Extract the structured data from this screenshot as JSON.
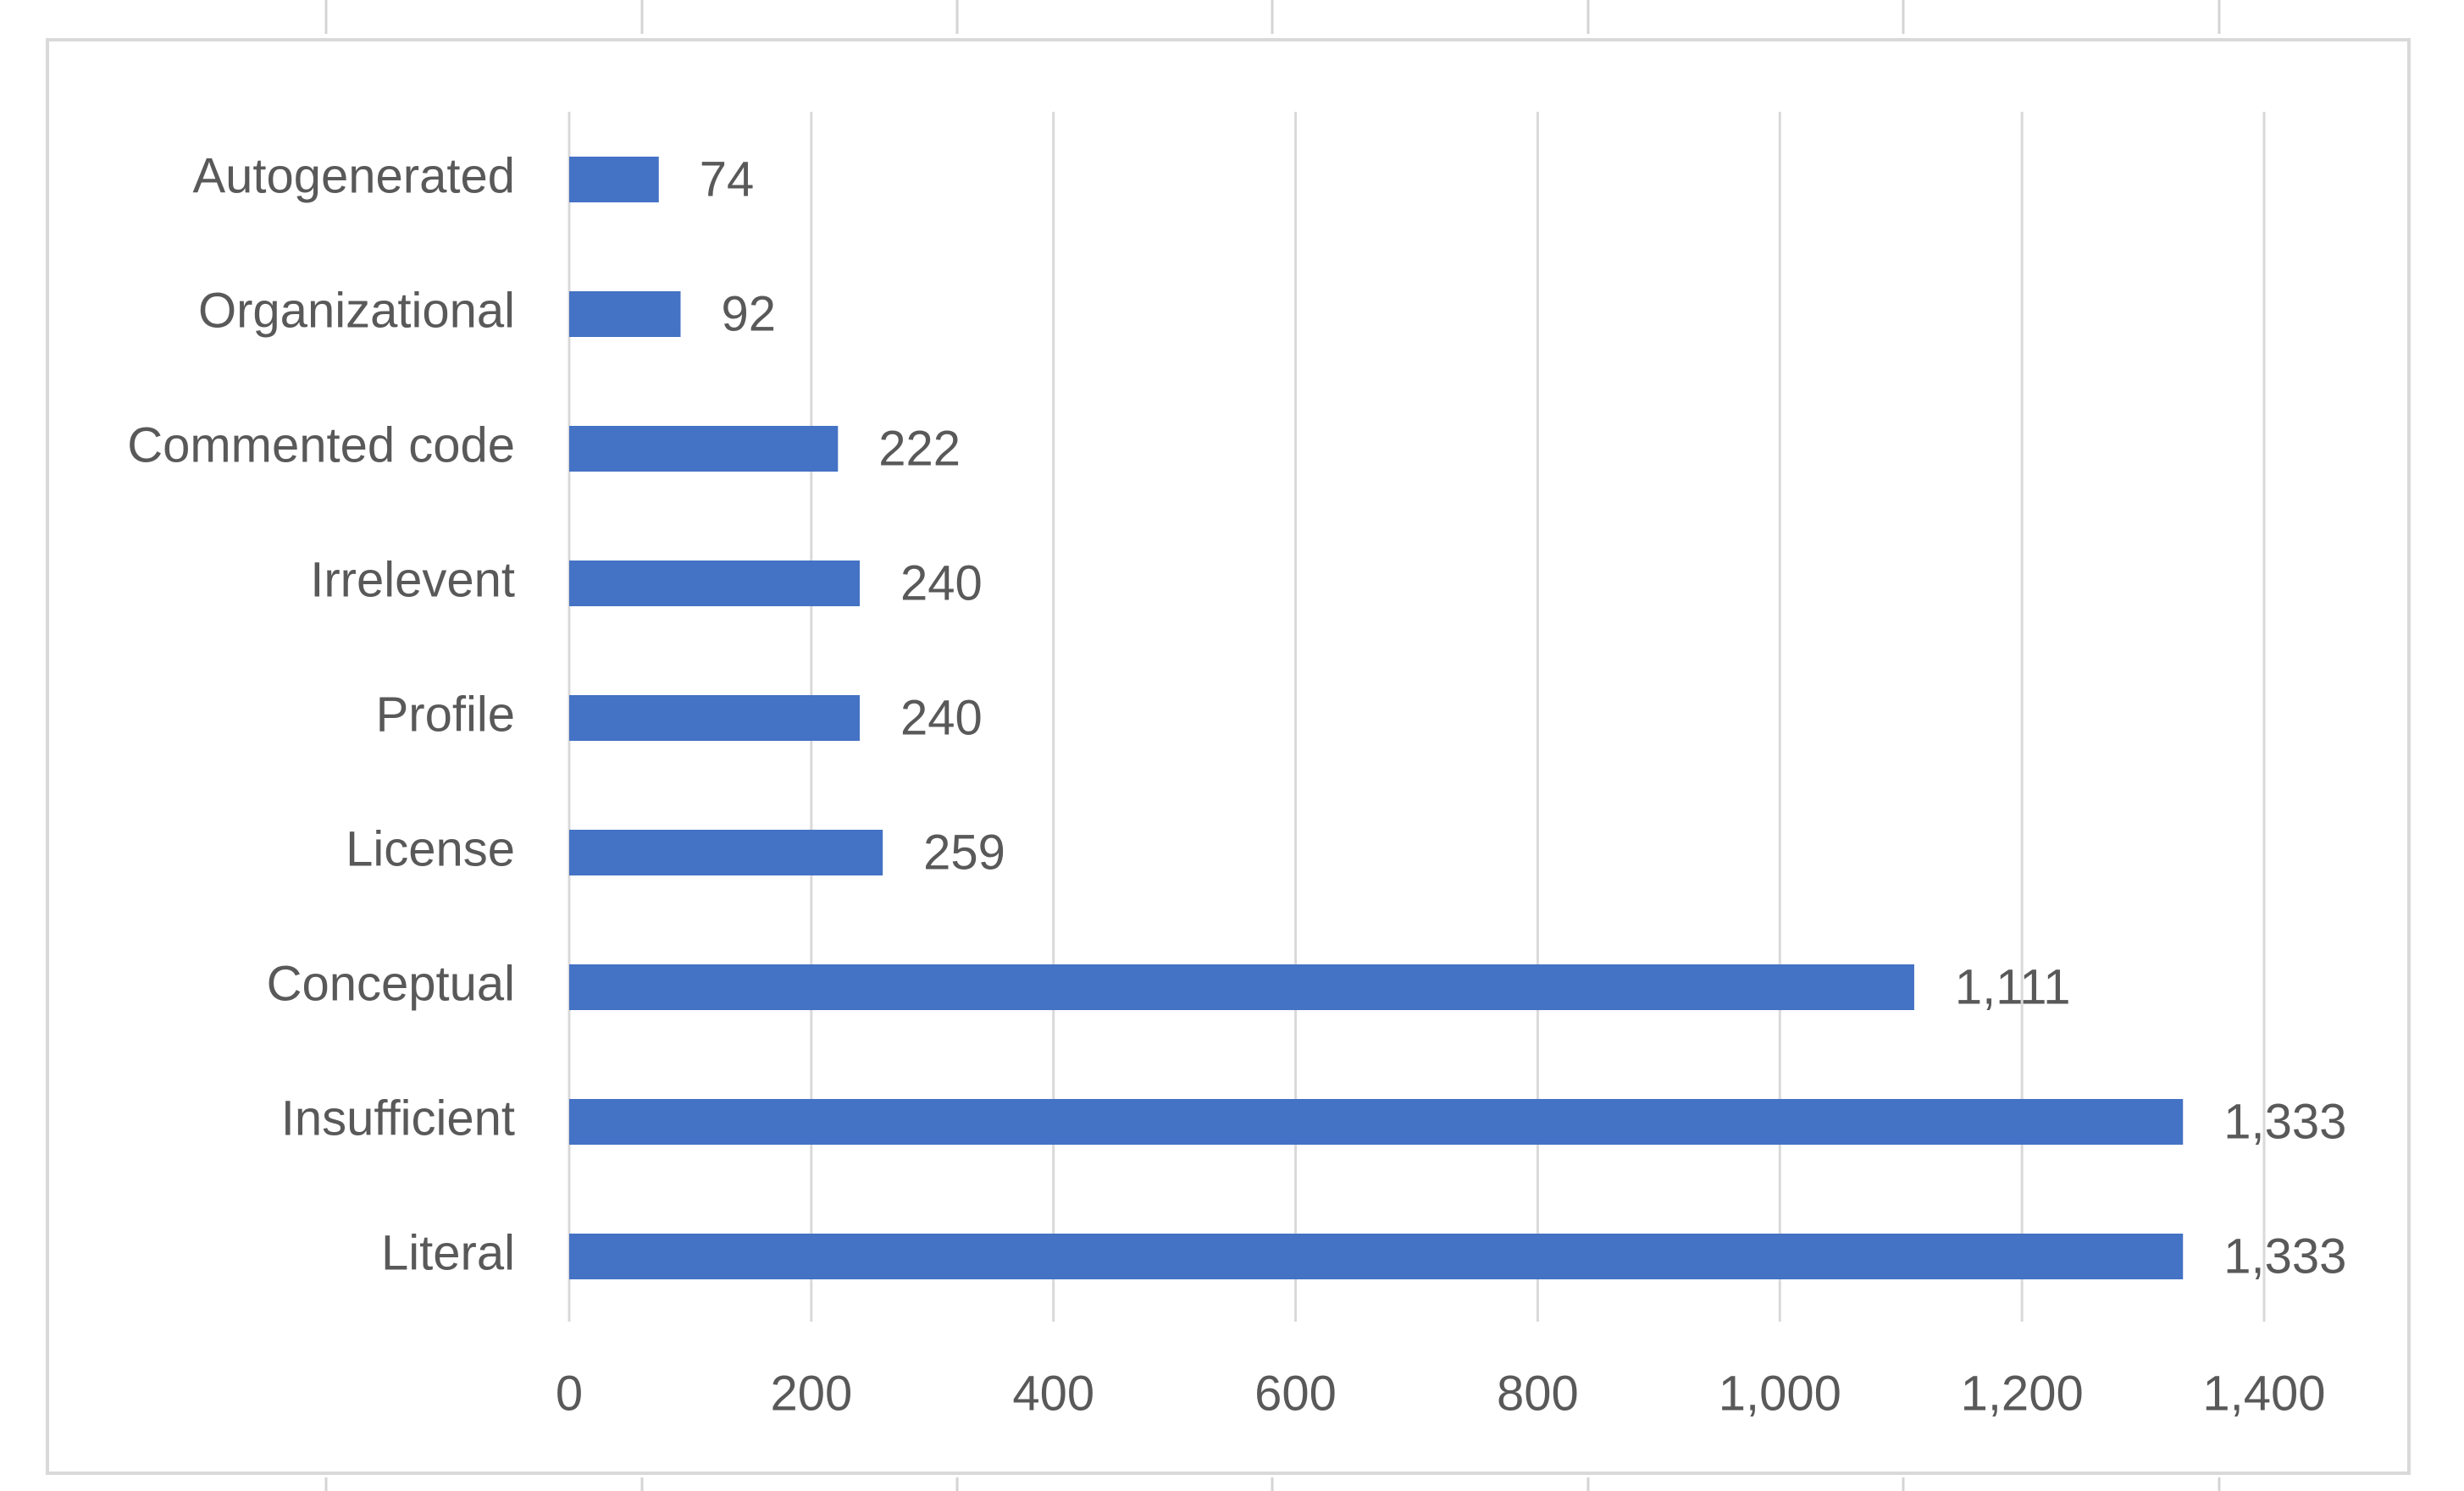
{
  "chart_data": {
    "type": "bar",
    "orientation": "horizontal",
    "categories": [
      "Autogenerated",
      "Organizational",
      "Commented code",
      "Irrelevent",
      "Profile",
      "License",
      "Conceptual",
      "Insufficient",
      "Literal"
    ],
    "values": [
      74,
      92,
      222,
      240,
      240,
      259,
      1111,
      1333,
      1333
    ],
    "value_labels": [
      "74",
      "92",
      "222",
      "240",
      "240",
      "259",
      "1,111",
      "1,333",
      "1,333"
    ],
    "color": "#4472c4",
    "xlim": [
      0,
      1400
    ],
    "xticks": [
      0,
      200,
      400,
      600,
      800,
      {
        "value": 1000,
        "label": "1,000"
      },
      {
        "value": 1200,
        "label": "1,200"
      },
      {
        "value": 1400,
        "label": "1,400"
      }
    ],
    "grid": true
  }
}
